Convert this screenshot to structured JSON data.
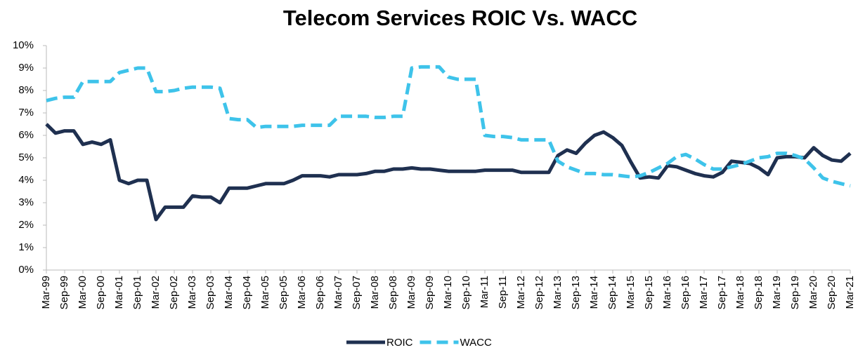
{
  "chart_data": {
    "type": "line",
    "title": "Telecom Services ROIC Vs. WACC",
    "categories": [
      "Mar-99",
      null,
      "Sep-99",
      null,
      "Mar-00",
      null,
      "Sep-00",
      null,
      "Mar-01",
      null,
      "Sep-01",
      null,
      "Mar-02",
      null,
      "Sep-02",
      null,
      "Mar-03",
      null,
      "Sep-03",
      null,
      "Mar-04",
      null,
      "Sep-04",
      null,
      "Mar-05",
      null,
      "Sep-05",
      null,
      "Mar-06",
      null,
      "Sep-06",
      null,
      "Mar-07",
      null,
      "Sep-07",
      null,
      "Mar-08",
      null,
      "Sep-08",
      null,
      "Mar-09",
      null,
      "Sep-09",
      null,
      "Mar-10",
      null,
      "Sep-10",
      null,
      "Mar-11",
      null,
      "Sep-11",
      null,
      "Mar-12",
      null,
      "Sep-12",
      null,
      "Mar-13",
      null,
      "Sep-13",
      null,
      "Mar-14",
      null,
      "Sep-14",
      null,
      "Mar-15",
      null,
      "Sep-15",
      null,
      "Mar-16",
      null,
      "Sep-16",
      null,
      "Mar-17",
      null,
      "Sep-17",
      null,
      "Mar-18",
      null,
      "Sep-18",
      null,
      "Mar-19",
      null,
      "Sep-19",
      null,
      "Mar-20",
      null,
      "Sep-20",
      null,
      "Mar-21"
    ],
    "series": [
      {
        "name": "ROIC",
        "color": "#1f3050",
        "dashed": false,
        "values": [
          6.5,
          6.1,
          6.2,
          6.2,
          5.6,
          5.7,
          5.6,
          5.8,
          4.0,
          3.85,
          4.0,
          4.0,
          2.25,
          2.8,
          2.8,
          2.8,
          3.3,
          3.25,
          3.25,
          3.0,
          3.65,
          3.65,
          3.65,
          3.75,
          3.85,
          3.85,
          3.85,
          4.0,
          4.2,
          4.2,
          4.2,
          4.15,
          4.25,
          4.25,
          4.25,
          4.3,
          4.4,
          4.4,
          4.5,
          4.5,
          4.55,
          4.5,
          4.5,
          4.45,
          4.4,
          4.4,
          4.4,
          4.4,
          4.45,
          4.45,
          4.45,
          4.45,
          4.35,
          4.35,
          4.35,
          4.35,
          5.1,
          5.35,
          5.2,
          5.65,
          6.0,
          6.15,
          5.9,
          5.55,
          4.8,
          4.1,
          4.15,
          4.1,
          4.65,
          4.6,
          4.45,
          4.3,
          4.2,
          4.15,
          4.35,
          4.85,
          4.8,
          4.75,
          4.55,
          4.25,
          5.0,
          5.05,
          5.05,
          5.0,
          5.45,
          5.1,
          4.9,
          4.85,
          5.2
        ]
      },
      {
        "name": "WACC",
        "color": "#3ec3ea",
        "dashed": true,
        "values": [
          7.55,
          7.65,
          7.7,
          7.7,
          8.4,
          8.4,
          8.4,
          8.4,
          8.8,
          8.9,
          9.0,
          9.0,
          7.95,
          7.95,
          8.0,
          8.1,
          8.15,
          8.15,
          8.15,
          8.1,
          6.75,
          6.7,
          6.7,
          6.35,
          6.4,
          6.4,
          6.4,
          6.4,
          6.45,
          6.45,
          6.45,
          6.45,
          6.85,
          6.85,
          6.85,
          6.85,
          6.8,
          6.8,
          6.85,
          6.85,
          9.0,
          9.05,
          9.05,
          9.05,
          8.6,
          8.5,
          8.5,
          8.5,
          6.0,
          5.95,
          5.95,
          5.9,
          5.8,
          5.8,
          5.8,
          5.8,
          4.85,
          4.6,
          4.45,
          4.3,
          4.3,
          4.25,
          4.25,
          4.2,
          4.15,
          4.2,
          4.35,
          4.55,
          4.75,
          5.05,
          5.15,
          4.95,
          4.7,
          4.5,
          4.5,
          4.6,
          4.7,
          4.85,
          5.0,
          5.05,
          5.2,
          5.2,
          5.1,
          4.95,
          4.55,
          4.1,
          3.95,
          3.85,
          3.75
        ]
      }
    ],
    "ylim": [
      0,
      10
    ],
    "yticks": [
      {
        "value": 0,
        "label": "0%"
      },
      {
        "value": 1,
        "label": "1%"
      },
      {
        "value": 2,
        "label": "2%"
      },
      {
        "value": 3,
        "label": "3%"
      },
      {
        "value": 4,
        "label": "4%"
      },
      {
        "value": 5,
        "label": "5%"
      },
      {
        "value": 6,
        "label": "6%"
      },
      {
        "value": 7,
        "label": "7%"
      },
      {
        "value": 8,
        "label": "8%"
      },
      {
        "value": 9,
        "label": "9%"
      },
      {
        "value": 10,
        "label": "10%"
      }
    ],
    "grid": false,
    "legend": "bottom"
  }
}
